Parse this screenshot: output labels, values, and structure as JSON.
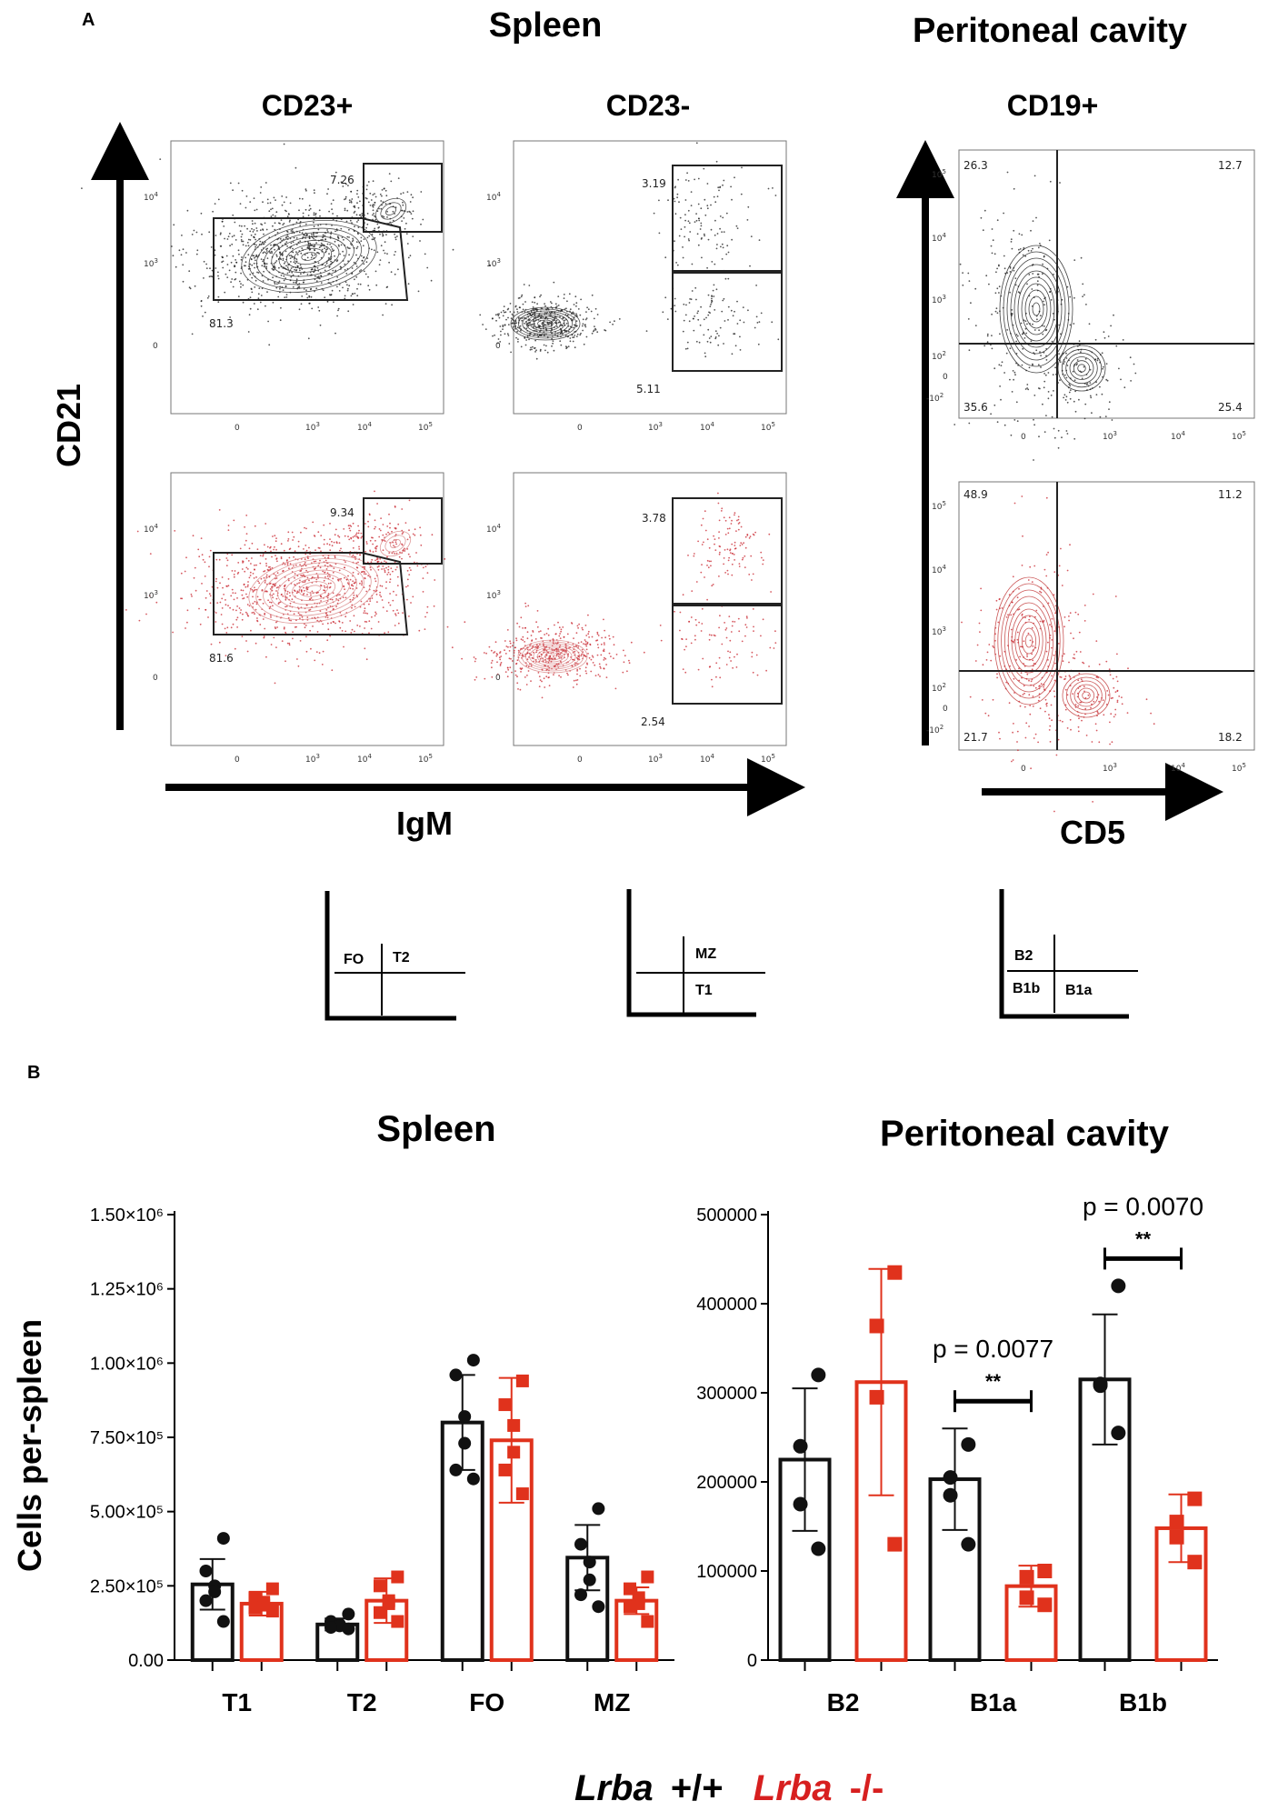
{
  "panel_a": {
    "label": "A",
    "titles": {
      "spleen": "Spleen",
      "peritoneal": "Peritoneal cavity"
    },
    "subtitles": {
      "cd23pos": "CD23+",
      "cd23neg": "CD23-",
      "cd19pos": "CD19+"
    },
    "axes": {
      "y_spleen": "CD21",
      "x_spleen": "IgM",
      "x_peritoneal": "CD5"
    },
    "ticks": {
      "p10_5": "10",
      "p10_4": "10",
      "p10_3": "10",
      "p10_2": "10",
      "zero": "0",
      "neg": "-10",
      "e5": "5",
      "e4": "4",
      "e3": "3",
      "e2": "2"
    },
    "colors": {
      "wt": "#1a1a1a",
      "ko": "#c8232c"
    },
    "gates": {
      "wt_cd23pos": {
        "t2": "7.26",
        "fo": "81.3"
      },
      "wt_cd23neg": {
        "mz": "3.19",
        "t1": "5.11"
      },
      "ko_cd23pos": {
        "t2": "9.34",
        "fo": "81.6"
      },
      "ko_cd23neg": {
        "mz": "3.78",
        "t1": "2.54"
      },
      "wt_cd19": {
        "ul": "26.3",
        "ur": "12.7",
        "ll": "35.6",
        "lr": "25.4"
      },
      "ko_cd19": {
        "ul": "48.9",
        "ur": "11.2",
        "ll": "21.7",
        "lr": "18.2"
      }
    },
    "legend_keys": {
      "fo": "FO",
      "t2": "T2",
      "mz": "MZ",
      "t1": "T1",
      "b2": "B2",
      "b1b": "B1b",
      "b1a": "B1a"
    }
  },
  "panel_b": {
    "label": "B",
    "colors": {
      "wt": "#111111",
      "ko": "#e0321c"
    }
  },
  "legend": {
    "wt_italic": "Lrba",
    "wt_rest": "+/+",
    "ko_italic": "Lrba",
    "ko_rest": "-/-"
  },
  "chart_data": [
    {
      "type": "bar",
      "title": "Spleen",
      "ylabel": "Cells per-spleen",
      "xlabel": "",
      "ylim": [
        0,
        1500000
      ],
      "ytick_labels": [
        "0.00",
        "2.50×10⁵",
        "5.00×10⁵",
        "7.50×10⁵",
        "1.00×10⁶",
        "1.25×10⁶",
        "1.50×10⁶"
      ],
      "yticks": [
        0,
        250000,
        500000,
        750000,
        1000000,
        1250000,
        1500000
      ],
      "categories": [
        "T1",
        "T2",
        "FO",
        "MZ"
      ],
      "series": [
        {
          "name": "Lrba +/+",
          "values": [
            255000,
            120000,
            800000,
            345000
          ],
          "sd": [
            85000,
            20000,
            160000,
            110000
          ],
          "points": [
            [
              410000,
              300000,
              250000,
              230000,
              200000,
              130000
            ],
            [
              155000,
              130000,
              120000,
              115000,
              110000,
              105000
            ],
            [
              1010000,
              960000,
              820000,
              730000,
              640000,
              610000
            ],
            [
              510000,
              390000,
              330000,
              270000,
              220000,
              180000
            ]
          ]
        },
        {
          "name": "Lrba -/-",
          "values": [
            190000,
            200000,
            740000,
            200000
          ],
          "sd": [
            40000,
            75000,
            210000,
            45000
          ],
          "points": [
            [
              240000,
              210000,
              195000,
              185000,
              175000,
              165000
            ],
            [
              280000,
              250000,
              200000,
              190000,
              160000,
              130000
            ],
            [
              940000,
              860000,
              790000,
              700000,
              640000,
              560000
            ],
            [
              280000,
              240000,
              210000,
              190000,
              180000,
              130000
            ]
          ]
        }
      ],
      "legend": "bottom"
    },
    {
      "type": "bar",
      "title": "Peritoneal cavity",
      "ylabel": "",
      "xlabel": "",
      "ylim": [
        0,
        500000
      ],
      "ytick_labels": [
        "0",
        "100000",
        "200000",
        "300000",
        "400000",
        "500000"
      ],
      "yticks": [
        0,
        100000,
        200000,
        300000,
        400000,
        500000
      ],
      "categories": [
        "B2",
        "B1a",
        "B1b"
      ],
      "series": [
        {
          "name": "Lrba +/+",
          "values": [
            225000,
            203000,
            315000
          ],
          "sd": [
            80000,
            57000,
            73000
          ],
          "points": [
            [
              320000,
              240000,
              175000,
              125000
            ],
            [
              242000,
              205000,
              185000,
              130000
            ],
            [
              420000,
              310000,
              308000,
              255000
            ]
          ]
        },
        {
          "name": "Lrba -/-",
          "values": [
            312000,
            83000,
            148000
          ],
          "sd": [
            127000,
            23000,
            38000
          ],
          "points": [
            [
              435000,
              375000,
              295000,
              130000
            ],
            [
              100000,
              93000,
              70000,
              62000
            ],
            [
              181000,
              155000,
              138000,
              110000
            ]
          ]
        }
      ],
      "annotations": [
        {
          "category": "B1a",
          "p_text": "p = 0.0077",
          "stars": "**"
        },
        {
          "category": "B1b",
          "p_text": "p = 0.0070",
          "stars": "**"
        }
      ],
      "legend": "bottom"
    }
  ]
}
